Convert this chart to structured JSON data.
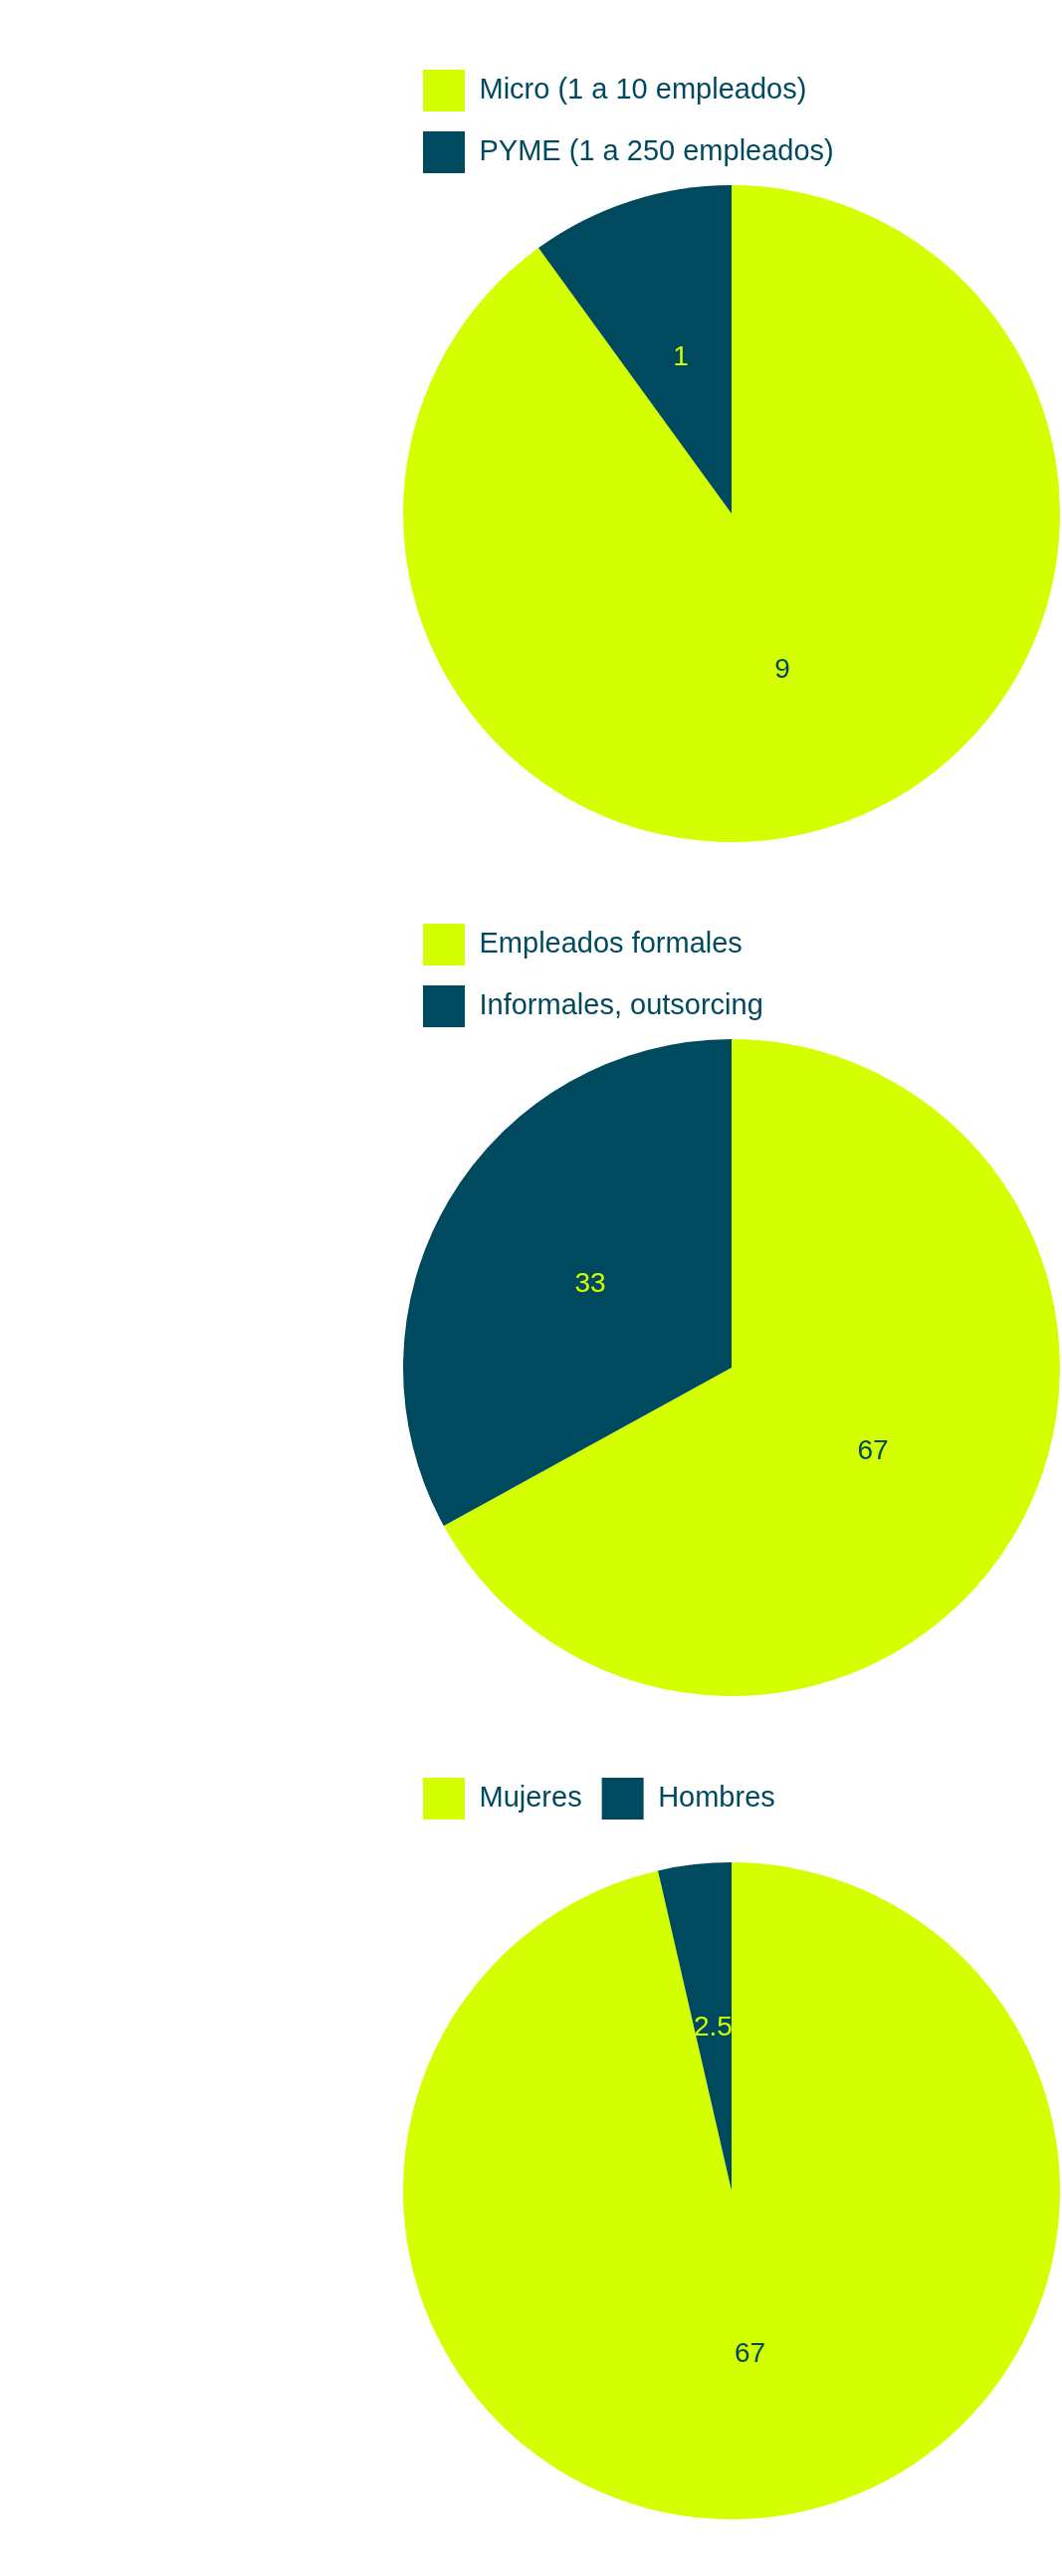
{
  "chart_data": [
    {
      "type": "pie",
      "categories": [
        "Micro (1 a 10 empleados)",
        "PYME (1 a 250 empleados)"
      ],
      "values": [
        9,
        1
      ],
      "colors": [
        "#d4ff00",
        "#004a5f"
      ],
      "legend": "top left",
      "data_labels": true
    },
    {
      "type": "pie",
      "categories": [
        "Empleados formales",
        "Informales, outsorcing"
      ],
      "values": [
        67,
        33
      ],
      "colors": [
        "#d4ff00",
        "#004a5f"
      ],
      "legend": "top left",
      "data_labels": true
    },
    {
      "type": "pie",
      "categories": [
        "Mujeres",
        "Hombres"
      ],
      "values": [
        67,
        2.5
      ],
      "colors": [
        "#d4ff00",
        "#004a5f"
      ],
      "legend": "top left",
      "data_labels": true
    }
  ]
}
